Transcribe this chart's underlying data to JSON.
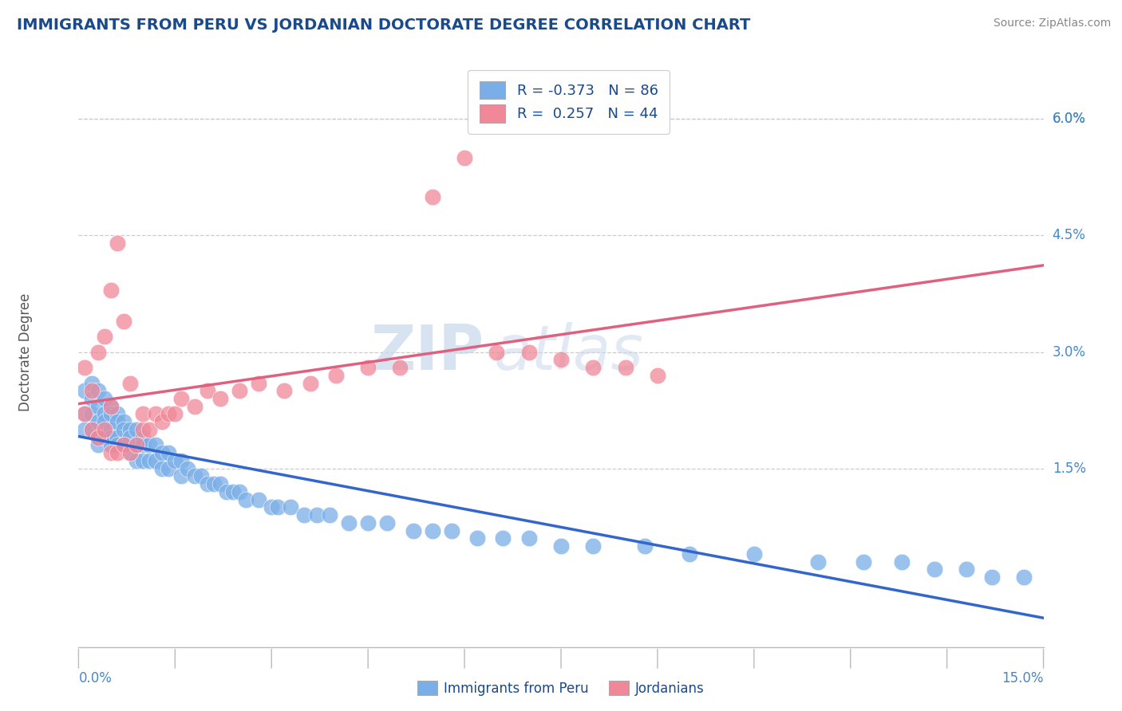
{
  "title": "IMMIGRANTS FROM PERU VS JORDANIAN DOCTORATE DEGREE CORRELATION CHART",
  "source": "Source: ZipAtlas.com",
  "ylabel": "Doctorate Degree",
  "right_yticks": [
    "6.0%",
    "4.5%",
    "3.0%",
    "1.5%"
  ],
  "right_ytick_vals": [
    0.06,
    0.045,
    0.03,
    0.015
  ],
  "xmin": 0.0,
  "xmax": 0.15,
  "ymin": -0.008,
  "ymax": 0.068,
  "legend1_label": "Immigrants from Peru",
  "legend2_label": "Jordanians",
  "R1": -0.373,
  "N1": 86,
  "R2": 0.257,
  "N2": 44,
  "color_blue": "#7aaee8",
  "color_pink": "#f08898",
  "color_blue_line": "#3366cc",
  "color_pink_line": "#e06080",
  "title_color": "#1a4a8a",
  "source_color": "#888888",
  "watermark_zip": "ZIP",
  "watermark_atlas": "atlas",
  "blue_scatter_x": [
    0.001,
    0.001,
    0.001,
    0.002,
    0.002,
    0.002,
    0.002,
    0.003,
    0.003,
    0.003,
    0.003,
    0.003,
    0.004,
    0.004,
    0.004,
    0.004,
    0.005,
    0.005,
    0.005,
    0.005,
    0.005,
    0.006,
    0.006,
    0.006,
    0.006,
    0.007,
    0.007,
    0.007,
    0.008,
    0.008,
    0.008,
    0.009,
    0.009,
    0.009,
    0.01,
    0.01,
    0.01,
    0.011,
    0.011,
    0.012,
    0.012,
    0.013,
    0.013,
    0.014,
    0.014,
    0.015,
    0.016,
    0.016,
    0.017,
    0.018,
    0.019,
    0.02,
    0.021,
    0.022,
    0.023,
    0.024,
    0.025,
    0.026,
    0.028,
    0.03,
    0.031,
    0.033,
    0.035,
    0.037,
    0.039,
    0.042,
    0.045,
    0.048,
    0.052,
    0.055,
    0.058,
    0.062,
    0.066,
    0.07,
    0.075,
    0.08,
    0.088,
    0.095,
    0.105,
    0.115,
    0.122,
    0.128,
    0.133,
    0.138,
    0.142,
    0.147
  ],
  "blue_scatter_y": [
    0.025,
    0.022,
    0.02,
    0.026,
    0.024,
    0.022,
    0.02,
    0.025,
    0.023,
    0.021,
    0.019,
    0.018,
    0.024,
    0.022,
    0.021,
    0.019,
    0.023,
    0.022,
    0.02,
    0.019,
    0.018,
    0.022,
    0.021,
    0.019,
    0.018,
    0.021,
    0.02,
    0.018,
    0.02,
    0.019,
    0.017,
    0.02,
    0.018,
    0.016,
    0.019,
    0.018,
    0.016,
    0.018,
    0.016,
    0.018,
    0.016,
    0.017,
    0.015,
    0.017,
    0.015,
    0.016,
    0.016,
    0.014,
    0.015,
    0.014,
    0.014,
    0.013,
    0.013,
    0.013,
    0.012,
    0.012,
    0.012,
    0.011,
    0.011,
    0.01,
    0.01,
    0.01,
    0.009,
    0.009,
    0.009,
    0.008,
    0.008,
    0.008,
    0.007,
    0.007,
    0.007,
    0.006,
    0.006,
    0.006,
    0.005,
    0.005,
    0.005,
    0.004,
    0.004,
    0.003,
    0.003,
    0.003,
    0.002,
    0.002,
    0.001,
    0.001
  ],
  "pink_scatter_x": [
    0.001,
    0.001,
    0.002,
    0.002,
    0.003,
    0.003,
    0.004,
    0.004,
    0.005,
    0.005,
    0.005,
    0.006,
    0.006,
    0.007,
    0.007,
    0.008,
    0.008,
    0.009,
    0.01,
    0.01,
    0.011,
    0.012,
    0.013,
    0.014,
    0.015,
    0.016,
    0.018,
    0.02,
    0.022,
    0.025,
    0.028,
    0.032,
    0.036,
    0.04,
    0.045,
    0.05,
    0.055,
    0.06,
    0.065,
    0.07,
    0.075,
    0.08,
    0.085,
    0.09
  ],
  "pink_scatter_y": [
    0.022,
    0.028,
    0.02,
    0.025,
    0.019,
    0.03,
    0.02,
    0.032,
    0.017,
    0.023,
    0.038,
    0.017,
    0.044,
    0.018,
    0.034,
    0.017,
    0.026,
    0.018,
    0.022,
    0.02,
    0.02,
    0.022,
    0.021,
    0.022,
    0.022,
    0.024,
    0.023,
    0.025,
    0.024,
    0.025,
    0.026,
    0.025,
    0.026,
    0.027,
    0.028,
    0.028,
    0.05,
    0.055,
    0.03,
    0.03,
    0.029,
    0.028,
    0.028,
    0.027
  ]
}
